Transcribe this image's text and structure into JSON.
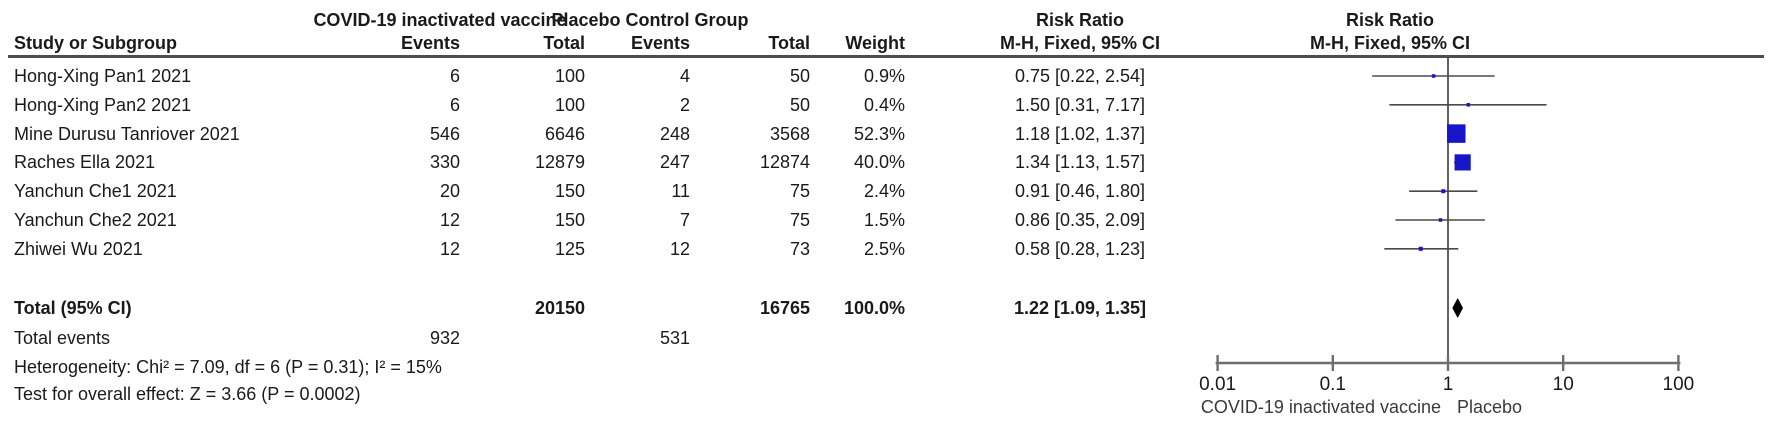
{
  "header": {
    "study_col": "Study or Subgroup",
    "group1": {
      "label": "COVID-19 inactivated vaccine",
      "events": "Events",
      "total": "Total"
    },
    "group2": {
      "label": "Placebo Control Group",
      "events": "Events",
      "total": "Total"
    },
    "weight": "Weight",
    "rr_text": {
      "line1": "Risk Ratio",
      "line2": "M-H, Fixed, 95% CI"
    },
    "rr_plot": {
      "line1": "Risk Ratio",
      "line2": "M-H, Fixed, 95% CI"
    }
  },
  "chart_data": {
    "type": "forest",
    "x_scale": "log10",
    "axis_ticks": [
      0.01,
      0.1,
      1,
      10,
      100
    ],
    "axis_range": [
      0.01,
      100
    ],
    "axis_labels": {
      "left": "COVID-19 inactivated vaccine",
      "right": "Placebo"
    },
    "studies": [
      {
        "name": "Hong-Xing Pan1 2021",
        "events1": 6,
        "total1": 100,
        "events2": 4,
        "total2": 50,
        "weight": "0.9%",
        "rr": 0.75,
        "ci_low": 0.22,
        "ci_high": 2.54,
        "rr_label": "0.75 [0.22, 2.54]"
      },
      {
        "name": "Hong-Xing Pan2 2021",
        "events1": 6,
        "total1": 100,
        "events2": 2,
        "total2": 50,
        "weight": "0.4%",
        "rr": 1.5,
        "ci_low": 0.31,
        "ci_high": 7.17,
        "rr_label": "1.50 [0.31, 7.17]"
      },
      {
        "name": "Mine Durusu Tanriover 2021",
        "events1": 546,
        "total1": 6646,
        "events2": 248,
        "total2": 3568,
        "weight": "52.3%",
        "rr": 1.18,
        "ci_low": 1.02,
        "ci_high": 1.37,
        "rr_label": "1.18 [1.02, 1.37]"
      },
      {
        "name": "Raches Ella 2021",
        "events1": 330,
        "total1": 12879,
        "events2": 247,
        "total2": 12874,
        "weight": "40.0%",
        "rr": 1.34,
        "ci_low": 1.13,
        "ci_high": 1.57,
        "rr_label": "1.34 [1.13, 1.57]"
      },
      {
        "name": "Yanchun Che1 2021",
        "events1": 20,
        "total1": 150,
        "events2": 11,
        "total2": 75,
        "weight": "2.4%",
        "rr": 0.91,
        "ci_low": 0.46,
        "ci_high": 1.8,
        "rr_label": "0.91 [0.46, 1.80]"
      },
      {
        "name": "Yanchun Che2 2021",
        "events1": 12,
        "total1": 150,
        "events2": 7,
        "total2": 75,
        "weight": "1.5%",
        "rr": 0.86,
        "ci_low": 0.35,
        "ci_high": 2.09,
        "rr_label": "0.86 [0.35, 2.09]"
      },
      {
        "name": "Zhiwei Wu 2021",
        "events1": 12,
        "total1": 125,
        "events2": 12,
        "total2": 73,
        "weight": "2.5%",
        "rr": 0.58,
        "ci_low": 0.28,
        "ci_high": 1.23,
        "rr_label": "0.58 [0.28, 1.23]"
      }
    ],
    "total": {
      "label": "Total (95% CI)",
      "total1": 20150,
      "total2": 16765,
      "weight": "100.0%",
      "rr": 1.22,
      "ci_low": 1.09,
      "ci_high": 1.35,
      "rr_label": "1.22 [1.09, 1.35]"
    },
    "total_events": {
      "label": "Total events",
      "events1": 932,
      "events2": 531
    },
    "heterogeneity": "Heterogeneity: Chi² = 7.09, df = 6 (P = 0.31); I² = 15%",
    "overall_effect": "Test for overall effect: Z = 3.66 (P = 0.0002)"
  },
  "colors": {
    "square": "#1616c8",
    "diamond": "#000000",
    "ci_line": "#4a4a4a",
    "axis": "#6e6e6e",
    "vline": "#3b3b3b",
    "rule": "#4d4d4d",
    "text": "#1a1a1a",
    "axis_label_text": "#3a3a3a"
  }
}
